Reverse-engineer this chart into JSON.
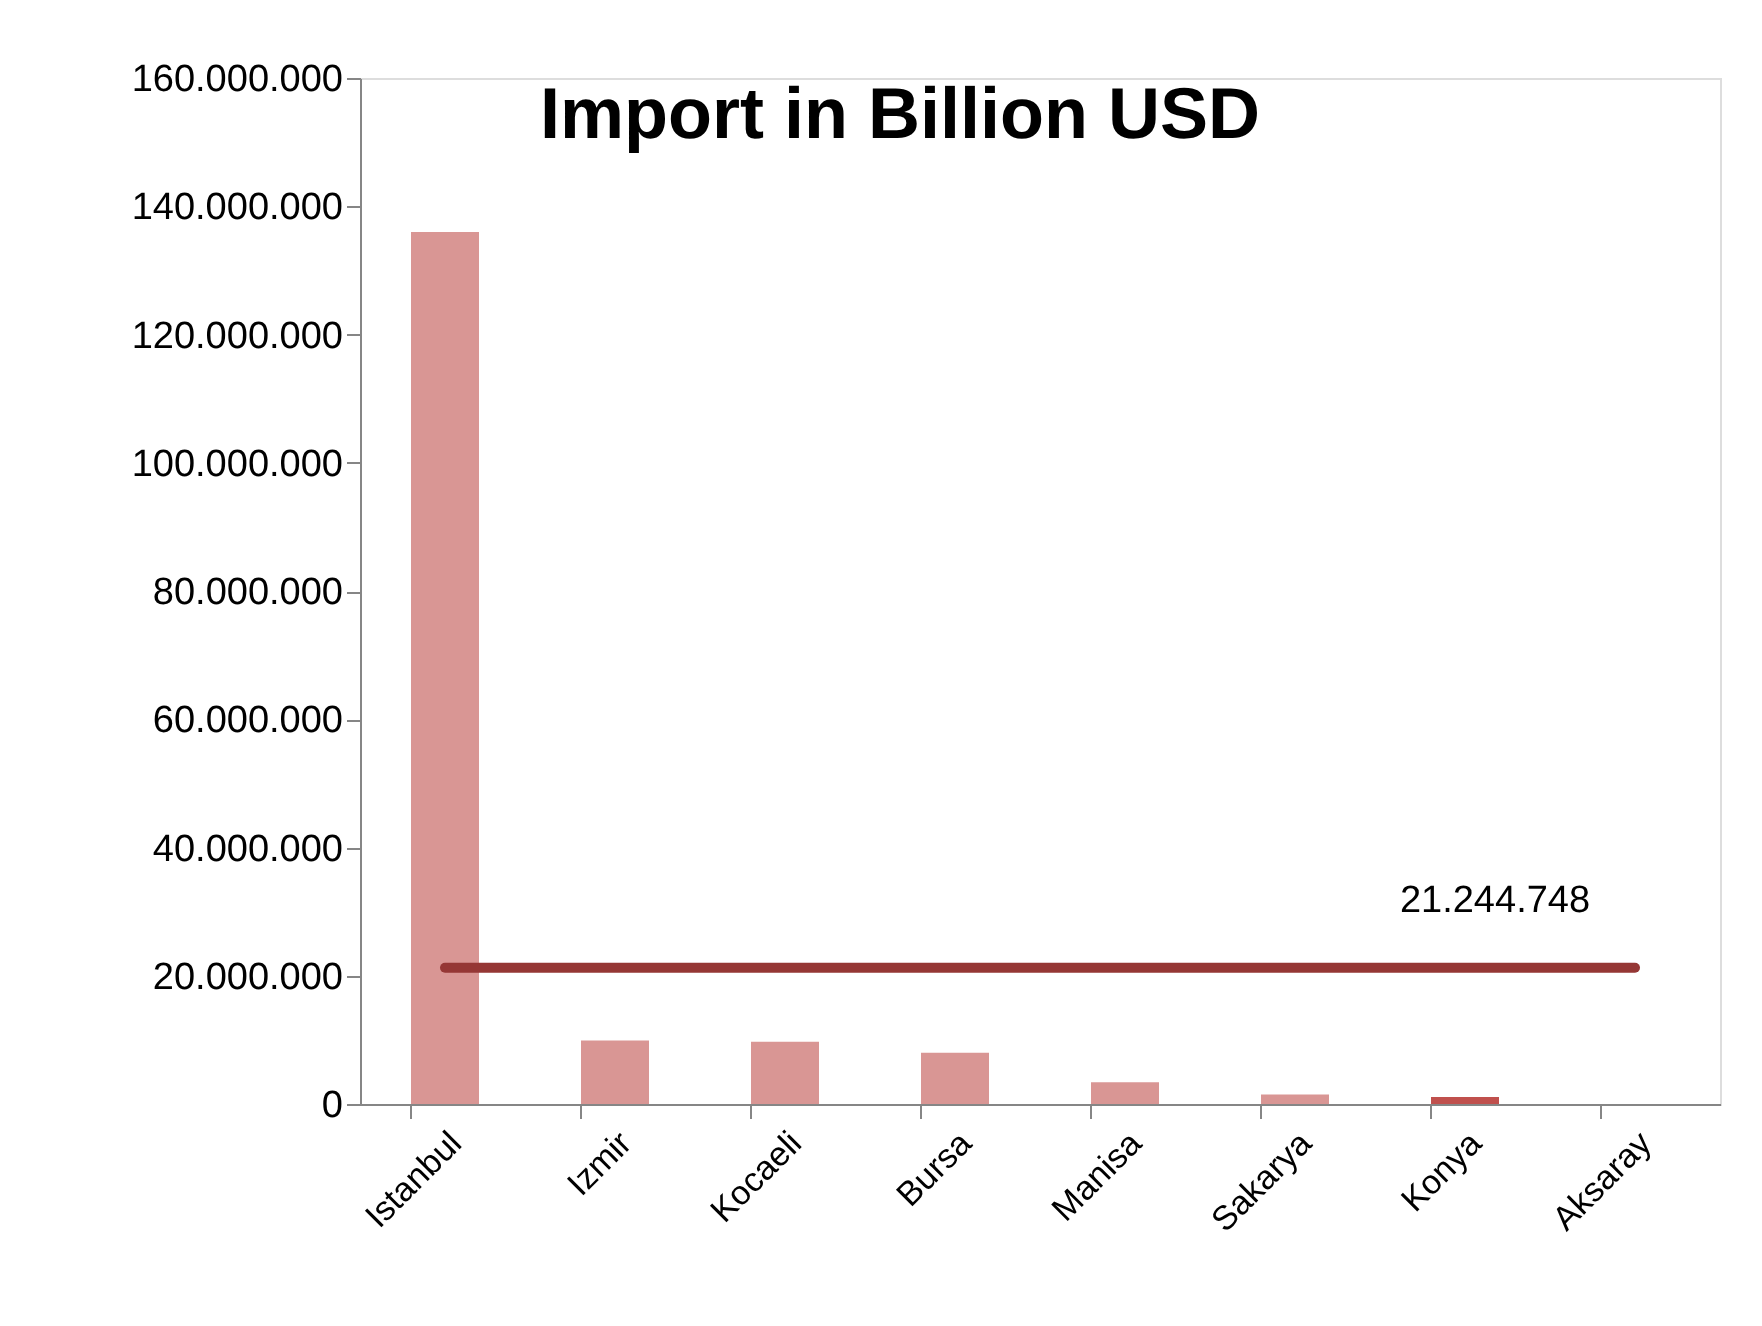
{
  "chart_data": {
    "type": "bar",
    "title": "Import in Billion USD",
    "categories": [
      "Istanbul",
      "Izmir",
      "Kocaeli",
      "Bursa",
      "Manisa",
      "Sakarya",
      "Konya",
      "Aksaray"
    ],
    "values": [
      136000000,
      9900000,
      9700000,
      8000000,
      3400000,
      1500000,
      1100000,
      0
    ],
    "colors": [
      "#d99694",
      "#d99694",
      "#d99694",
      "#d99694",
      "#d99694",
      "#d99694",
      "#c0504d",
      "#d99694"
    ],
    "ylim": [
      0,
      160000000
    ],
    "yticks": [
      {
        "value": 0,
        "label": "0"
      },
      {
        "value": 20000000,
        "label": "20.000.000"
      },
      {
        "value": 40000000,
        "label": "40.000.000"
      },
      {
        "value": 60000000,
        "label": "60.000.000"
      },
      {
        "value": 80000000,
        "label": "80.000.000"
      },
      {
        "value": 100000000,
        "label": "100.000.000"
      },
      {
        "value": 120000000,
        "label": "120.000.000"
      },
      {
        "value": 140000000,
        "label": "140.000.000"
      },
      {
        "value": 160000000,
        "label": "160.000.000"
      }
    ],
    "ref_lines": [
      {
        "axis": "y",
        "value": 21244748,
        "label": "21.244.748",
        "color": "#953735"
      }
    ],
    "grid": false
  }
}
